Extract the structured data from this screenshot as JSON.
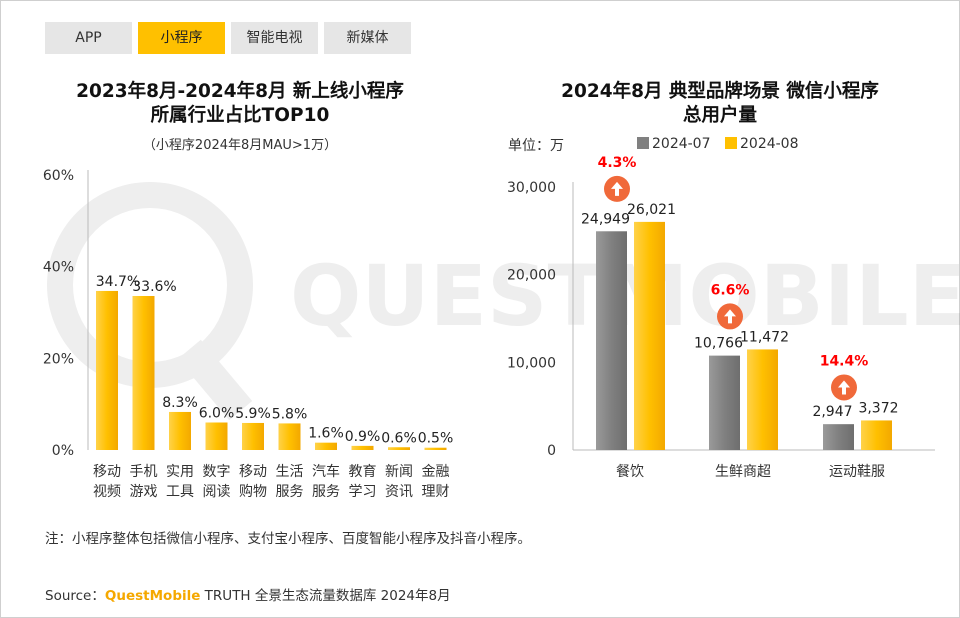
{
  "tabs": [
    {
      "label": "APP",
      "active": false
    },
    {
      "label": "小程序",
      "active": true
    },
    {
      "label": "智能电视",
      "active": false
    },
    {
      "label": "新媒体",
      "active": false
    }
  ],
  "watermark": "QUESTMOBILE",
  "note": "注：小程序整体包括微信小程序、支付宝小程序、百度智能小程序及抖音小程序。",
  "source": {
    "prefix": "Source：",
    "brand": "QuestMobile",
    "rest": " TRUTH 全景生态流量数据库 2024年8月"
  },
  "colors": {
    "accent": "#ffc000",
    "gray": "#808080",
    "red": "#ff0000",
    "arrow": "#f0693a",
    "tab_bg": "#e6e6e6"
  },
  "chart_data": [
    {
      "type": "bar",
      "title_line1": "2023年8月-2024年8月 新上线小程序",
      "title_line2": "所属行业占比TOP10",
      "subtitle": "（小程序2024年8月MAU>1万）",
      "categories": [
        [
          "移动",
          "视频"
        ],
        [
          "手机",
          "游戏"
        ],
        [
          "实用",
          "工具"
        ],
        [
          "数字",
          "阅读"
        ],
        [
          "移动",
          "购物"
        ],
        [
          "生活",
          "服务"
        ],
        [
          "汽车",
          "服务"
        ],
        [
          "教育",
          "学习"
        ],
        [
          "新闻",
          "资讯"
        ],
        [
          "金融",
          "理财"
        ]
      ],
      "values": [
        34.7,
        33.6,
        8.3,
        6.0,
        5.9,
        5.8,
        1.6,
        0.9,
        0.6,
        0.5
      ],
      "value_labels": [
        "34.7%",
        "33.6%",
        "8.3%",
        "6.0%",
        "5.9%",
        "5.8%",
        "1.6%",
        "0.9%",
        "0.6%",
        "0.5%"
      ],
      "yticks": [
        "0%",
        "20%",
        "40%",
        "60%"
      ],
      "ylim": [
        0,
        60
      ]
    },
    {
      "type": "bar",
      "title_line1": "2024年8月 典型品牌场景 微信小程序",
      "title_line2": "总用户量",
      "unit": "单位：万",
      "categories": [
        "餐饮",
        "生鲜商超",
        "运动鞋服"
      ],
      "series": [
        {
          "name": "2024-07",
          "values": [
            24949,
            10766,
            2947
          ],
          "labels": [
            "24,949",
            "10,766",
            "2,947"
          ]
        },
        {
          "name": "2024-08",
          "values": [
            26021,
            11472,
            3372
          ],
          "labels": [
            "26,021",
            "11,472",
            "3,372"
          ]
        }
      ],
      "growth": [
        "4.3%",
        "6.6%",
        "14.4%"
      ],
      "yticks": [
        "0",
        "10,000",
        "20,000",
        "30,000"
      ],
      "ylim": [
        0,
        30000
      ]
    }
  ]
}
